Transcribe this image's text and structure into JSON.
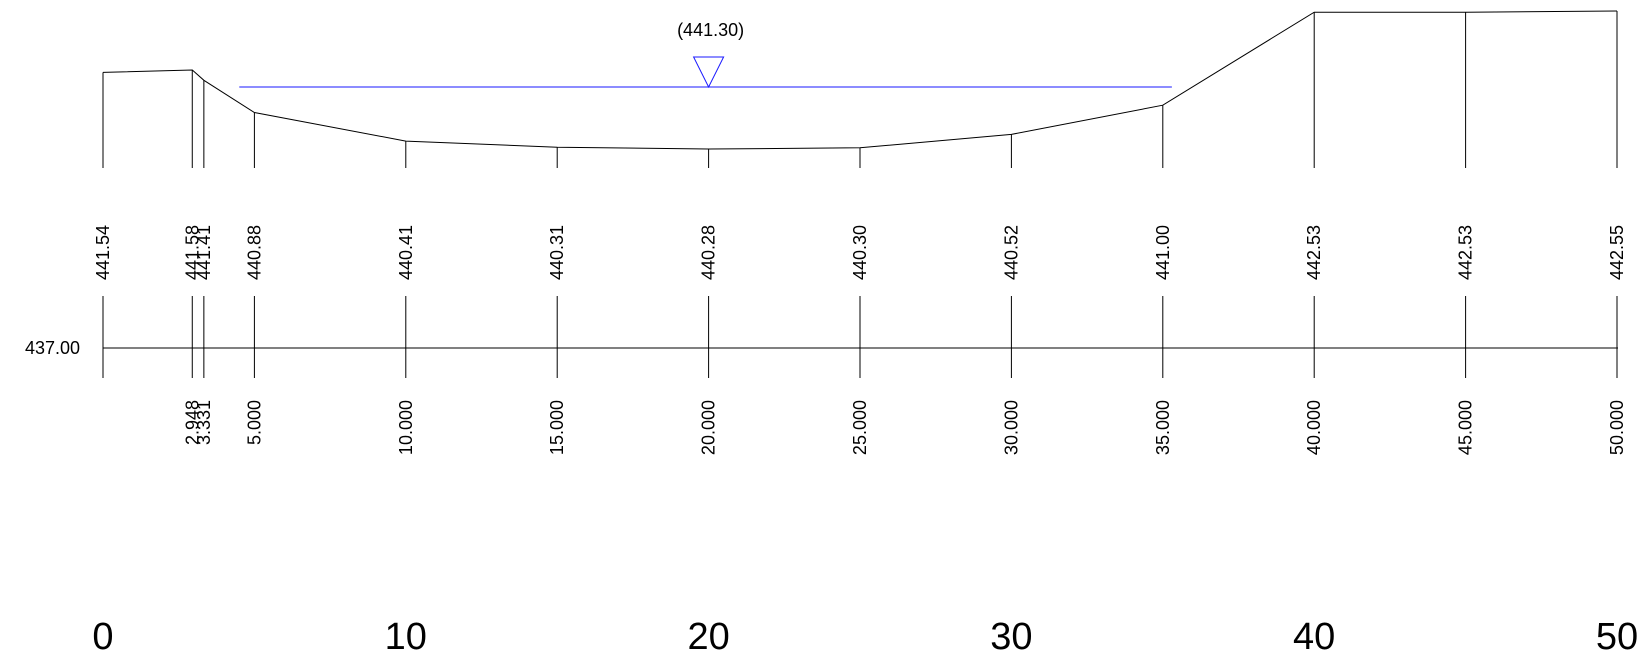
{
  "datum": {
    "label": "437.00",
    "value": 437.0
  },
  "water_level": {
    "label": "(441.30)",
    "elevation": 441.3,
    "color": "#1a1aff",
    "from_station": 4.5,
    "to_station": 35.3,
    "marker_station": 20.0
  },
  "ground_color": "#000000",
  "points": [
    {
      "station": 0.0,
      "elevation": 441.54,
      "elevation_label": "441.54",
      "station_label": ""
    },
    {
      "station": 2.948,
      "elevation": 441.58,
      "elevation_label": "441.58",
      "station_label": "2.948"
    },
    {
      "station": 3.331,
      "elevation": 441.41,
      "elevation_label": "441.41",
      "station_label": "3.331"
    },
    {
      "station": 5.0,
      "elevation": 440.88,
      "elevation_label": "440.88",
      "station_label": "5.000"
    },
    {
      "station": 10.0,
      "elevation": 440.41,
      "elevation_label": "440.41",
      "station_label": "10.000"
    },
    {
      "station": 15.0,
      "elevation": 440.31,
      "elevation_label": "440.31",
      "station_label": "15.000"
    },
    {
      "station": 20.0,
      "elevation": 440.28,
      "elevation_label": "440.28",
      "station_label": "20.000"
    },
    {
      "station": 25.0,
      "elevation": 440.3,
      "elevation_label": "440.30",
      "station_label": "25.000"
    },
    {
      "station": 30.0,
      "elevation": 440.52,
      "elevation_label": "440.52",
      "station_label": "30.000"
    },
    {
      "station": 35.0,
      "elevation": 441.0,
      "elevation_label": "441.00",
      "station_label": "35.000"
    },
    {
      "station": 40.0,
      "elevation": 442.53,
      "elevation_label": "442.53",
      "station_label": "40.000"
    },
    {
      "station": 45.0,
      "elevation": 442.53,
      "elevation_label": "442.53",
      "station_label": "45.000"
    },
    {
      "station": 50.0,
      "elevation": 442.55,
      "elevation_label": "442.55",
      "station_label": "50.000"
    }
  ],
  "scale": {
    "labels": [
      "0",
      "10",
      "20",
      "30",
      "40",
      "50"
    ],
    "values": [
      0,
      10,
      20,
      30,
      40,
      50
    ]
  }
}
